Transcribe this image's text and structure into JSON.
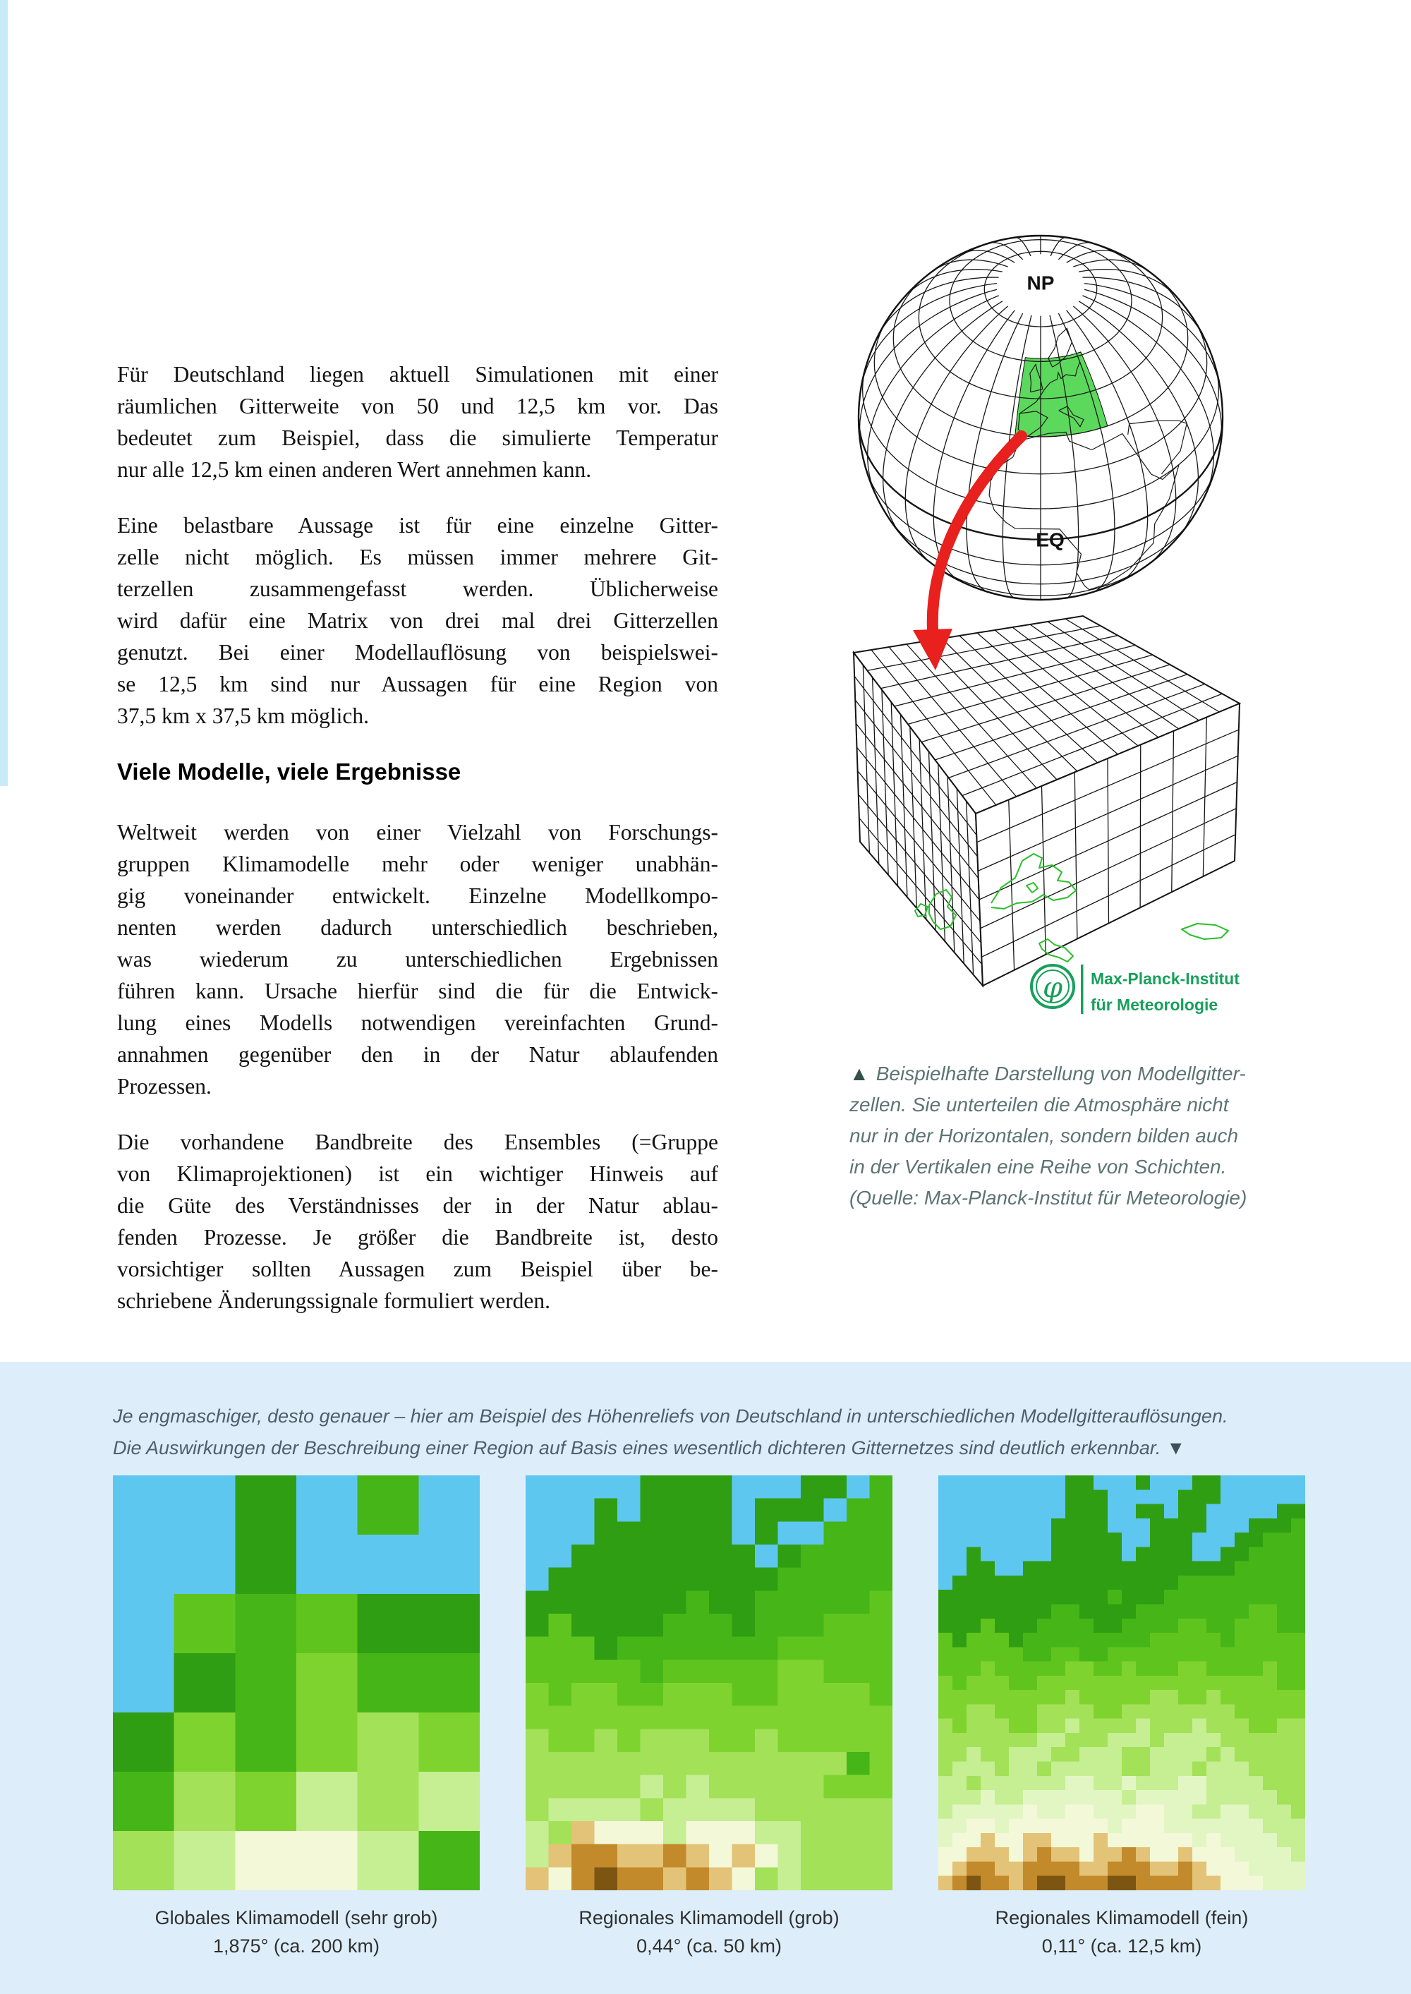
{
  "article": {
    "heading": "Viele Modelle, viele Ergebnisse",
    "heading_before_paragraph": 2,
    "paragraphs": [
      [
        "Für Deutschland liegen aktuell Simulationen mit einer",
        "räumlichen Gitterweite von 50 und 12,5 km vor. Das",
        "bedeutet zum Beispiel, dass die simulierte Temperatur",
        "nur alle 12,5 km einen anderen Wert annehmen kann."
      ],
      [
        "Eine belastbare Aussage ist für eine einzelne Gitter-",
        "zelle nicht möglich. Es müssen immer mehrere Git-",
        "terzellen zusammengefasst werden. Üblicherweise",
        "wird dafür eine Matrix von drei mal drei Gitterzellen",
        "genutzt. Bei einer Modellauflösung von beispielswei-",
        "se 12,5 km sind nur Aussagen für eine Region von",
        "37,5 km x 37,5 km möglich."
      ],
      [
        "Weltweit werden von einer Vielzahl von Forschungs-",
        "gruppen Klimamodelle mehr oder weniger unabhän-",
        "gig voneinander entwickelt. Einzelne Modellkompo-",
        "nenten werden dadurch unterschiedlich beschrieben,",
        "was wiederum zu unterschiedlichen Ergebnissen",
        "führen kann. Ursache hierfür sind die für die Entwick-",
        "lung eines Modells notwendigen vereinfachten Grund-",
        "annahmen gegenüber den in der Natur ablaufenden",
        "Prozessen."
      ],
      [
        "Die vorhandene Bandbreite des Ensembles (=Gruppe",
        "von Klimaprojektionen) ist ein wichtiger Hinweis auf",
        "die Güte des Verständnisses der in der Natur ablau-",
        "fenden Prozesse. Je größer die Bandbreite ist, desto",
        "vorsichtiger sollten Aussagen zum Beispiel über be-",
        "schriebene Änderungssignale formuliert werden."
      ]
    ]
  },
  "globe": {
    "np_label": "NP",
    "eq_label": "EQ",
    "highlight_color": "#5cd95c",
    "arrow_color": "#e8201e"
  },
  "logo": {
    "line1": "Max-Planck-Institut",
    "line2": "für Meteorologie",
    "color": "#17a05b"
  },
  "figure_caption": {
    "marker": "▲",
    "lines": [
      "Beispielhafte Darstellung von Modellgitter-",
      "zellen. Sie unterteilen die Atmosphäre nicht",
      "nur in der Horizontalen, sondern bilden auch",
      "in der Vertikalen eine Reihe von Schichten.",
      "(Quelle: Max-Planck-Institut für Meteorologie)"
    ]
  },
  "bottom": {
    "bg_color": "#ddeefa",
    "caption_line1": "Je engmaschiger, desto genauer – hier am Beispiel des Höhenreliefs von Deutschland in unterschiedlichen Modellgitterauflösungen.",
    "caption_line2": "Die Auswirkungen der Beschreibung einer Region auf Basis eines wesentlich dichteren Gitternetzes sind deutlich erkennbar.",
    "caption_marker": "▼",
    "maps": [
      {
        "title": "Globales Klimamodell (sehr grob)",
        "resolution": "1,875° (ca. 200 km)"
      },
      {
        "title": "Regionales Klimamodell (grob)",
        "resolution": "0,44° (ca. 50 km)"
      },
      {
        "title": "Regionales Klimamodell (fein)",
        "resolution": "0,11° (ca. 12,5 km)"
      }
    ],
    "palette": {
      "B": "#5ec7f0",
      "D": "#2f9e12",
      "G": "#46b517",
      "g": "#5fc51e",
      "Y": "#7fd32f",
      "y": "#a3e158",
      "L": "#c6ee92",
      "P": "#e2f6c4",
      "C": "#f3f8d8",
      "T": "#e3c377",
      "O": "#c28a2a",
      "N": "#7d5513"
    }
  },
  "accent": {
    "left_bar_color": "#c7ecf8",
    "body_text_color": "#131313",
    "caption_color": "#5d7471",
    "bottom_caption_color": "#4d6069"
  }
}
